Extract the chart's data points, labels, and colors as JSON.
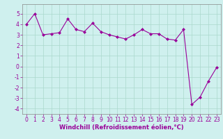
{
  "x": [
    0,
    1,
    2,
    3,
    4,
    5,
    6,
    7,
    8,
    9,
    10,
    11,
    12,
    13,
    14,
    15,
    16,
    17,
    18,
    19,
    20,
    21,
    22,
    23
  ],
  "y": [
    4.0,
    5.0,
    3.0,
    3.1,
    3.2,
    4.5,
    3.5,
    3.3,
    4.1,
    3.3,
    3.0,
    2.8,
    2.6,
    3.0,
    3.5,
    3.1,
    3.1,
    2.6,
    2.5,
    3.5,
    -3.6,
    -2.9,
    -1.4,
    -0.1
  ],
  "line_color": "#990099",
  "marker": "D",
  "marker_size": 2,
  "bg_color": "#cff0ee",
  "grid_color": "#aad8cc",
  "xlabel": "Windchill (Refroidissement éolien,°C)",
  "ylim": [
    -4.5,
    5.9
  ],
  "xlim": [
    -0.5,
    23.5
  ],
  "yticks": [
    -4,
    -3,
    -2,
    -1,
    0,
    1,
    2,
    3,
    4,
    5
  ],
  "xticks": [
    0,
    1,
    2,
    3,
    4,
    5,
    6,
    7,
    8,
    9,
    10,
    11,
    12,
    13,
    14,
    15,
    16,
    17,
    18,
    19,
    20,
    21,
    22,
    23
  ],
  "tick_color": "#990099",
  "label_color": "#990099",
  "label_fontsize": 6,
  "tick_fontsize": 5.5,
  "spine_color": "#888888"
}
